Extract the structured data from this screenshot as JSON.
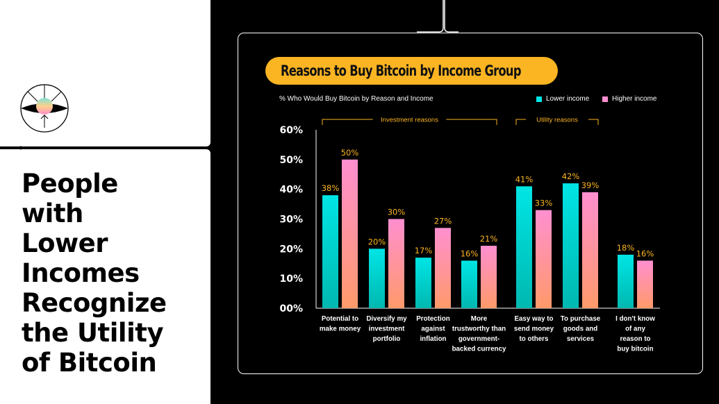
{
  "headline": "People\nwith\nLower\nIncomes\nRecognize\nthe Utility\nof Bitcoin",
  "chart_title": "Reasons to Buy Bitcoin by Income Group",
  "colors": {
    "accent": "#fbb522",
    "lower": "#00e5e5",
    "higher": "#ff8fd0",
    "higher_bottom": "#ff9a6a",
    "lower_bottom": "#00b8b0"
  },
  "chart_data": {
    "type": "bar",
    "subtitle": "% Who Would Buy Bitcoin by Reason and Income",
    "groups": [
      {
        "label": "Investment reasons",
        "categories": [
          0,
          1,
          2,
          3
        ]
      },
      {
        "label": "Utility reasons",
        "categories": [
          4,
          5
        ]
      }
    ],
    "categories": [
      "Potential to\nmake money",
      "Diversify my\ninvestment\nportfolio",
      "Protection\nagainst\ninflation",
      "More\ntrustworthy than\ngovernment-\nbacked currency",
      "Easy way to\nsend money\nto others",
      "To purchase\ngoods and\nservices",
      "I don't know\nof any\nreason to\nbuy bitcoin"
    ],
    "series": [
      {
        "name": "Lower income",
        "values": [
          38,
          20,
          17,
          16,
          41,
          42,
          18
        ]
      },
      {
        "name": "Higher income",
        "values": [
          50,
          30,
          27,
          21,
          33,
          39,
          16
        ]
      }
    ],
    "yticks": [
      "00%",
      "10%",
      "20%",
      "30%",
      "40%",
      "50%",
      "60%"
    ],
    "ylim": [
      0,
      60
    ],
    "legend_position": "top-right",
    "grid": false
  }
}
